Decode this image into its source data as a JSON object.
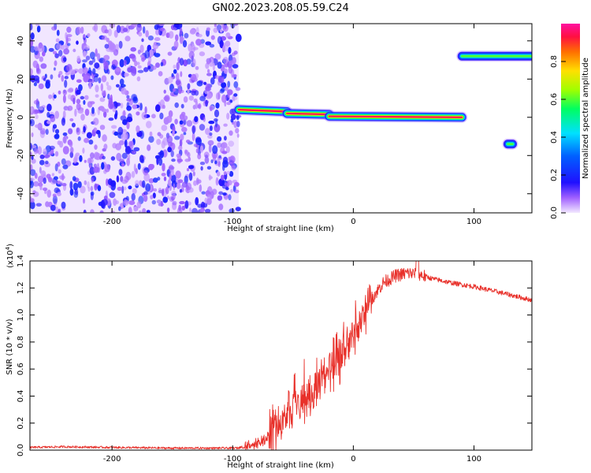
{
  "title": "GN02.2023.208.05.59.C24",
  "colors": {
    "snr_line": "#e8302a",
    "noise": "#8a3cf0",
    "signal_core": "#ff2050",
    "signal_edge": "#00c8ff",
    "axis": "#000000"
  },
  "chart_data": [
    {
      "type": "heatmap",
      "xlabel": "Height of straight line (km)",
      "ylabel": "Frequency (Hz)",
      "xlim": [
        -268,
        148
      ],
      "ylim": [
        -50,
        49
      ],
      "xticks": [
        -200,
        -100,
        0,
        100
      ],
      "yticks": [
        -40,
        -20,
        0,
        20,
        40
      ],
      "colorbar": {
        "label": "Normalized spectral amplitude",
        "range": [
          0,
          1
        ],
        "ticks": [
          "0.0",
          "0.2",
          "0.4",
          "0.6",
          "0.8"
        ],
        "tick_values": [
          0.0,
          0.2,
          0.4,
          0.6,
          0.8
        ]
      },
      "noise_region": {
        "x_range": [
          -268,
          -95
        ],
        "y_range": [
          -50,
          49
        ],
        "amplitude_range": [
          0.05,
          0.25
        ]
      },
      "features": [
        {
          "x_range": [
            -95,
            -55
          ],
          "y_start": 4,
          "y_end": 3,
          "peak_amplitude": 1.0
        },
        {
          "x_range": [
            -55,
            -20
          ],
          "y_start": 2,
          "y_end": 1.5,
          "peak_amplitude": 1.0
        },
        {
          "x_range": [
            -20,
            90
          ],
          "y_start": 0.5,
          "y_end": 0,
          "peak_amplitude": 1.0
        },
        {
          "x_range": [
            90,
            148
          ],
          "y_start": 32,
          "y_end": 32,
          "peak_amplitude": 0.35
        },
        {
          "x_range": [
            128,
            132
          ],
          "y_start": -14,
          "y_end": -14,
          "peak_amplitude": 0.2
        }
      ]
    },
    {
      "type": "line",
      "xlabel": "Height of straight line (km)",
      "ylabel": "SNR (10 * v/v)",
      "yscale_label": "(x10",
      "yscale_exp": "4",
      "yscale_close": ")",
      "xlim": [
        -268,
        148
      ],
      "ylim": [
        0,
        1.4
      ],
      "xticks": [
        -200,
        -100,
        0,
        100
      ],
      "yticks": [
        "0.0",
        "0.2",
        "0.4",
        "0.6",
        "0.8",
        "1.0",
        "1.2",
        "1.4"
      ],
      "ytick_values": [
        0.0,
        0.2,
        0.4,
        0.6,
        0.8,
        1.0,
        1.2,
        1.4
      ],
      "series": [
        {
          "x": [
            -268,
            -240,
            -200,
            -150,
            -100,
            -85,
            -75,
            -65,
            -55,
            -45,
            -35,
            -25,
            -15,
            -5,
            5,
            15,
            25,
            35,
            45,
            55,
            65,
            80,
            100,
            120,
            148
          ],
          "y": [
            0.02,
            0.025,
            0.02,
            0.015,
            0.015,
            0.02,
            0.06,
            0.13,
            0.22,
            0.33,
            0.42,
            0.52,
            0.62,
            0.74,
            0.92,
            1.12,
            1.24,
            1.29,
            1.31,
            1.3,
            1.27,
            1.24,
            1.21,
            1.17,
            1.11
          ]
        }
      ]
    }
  ]
}
